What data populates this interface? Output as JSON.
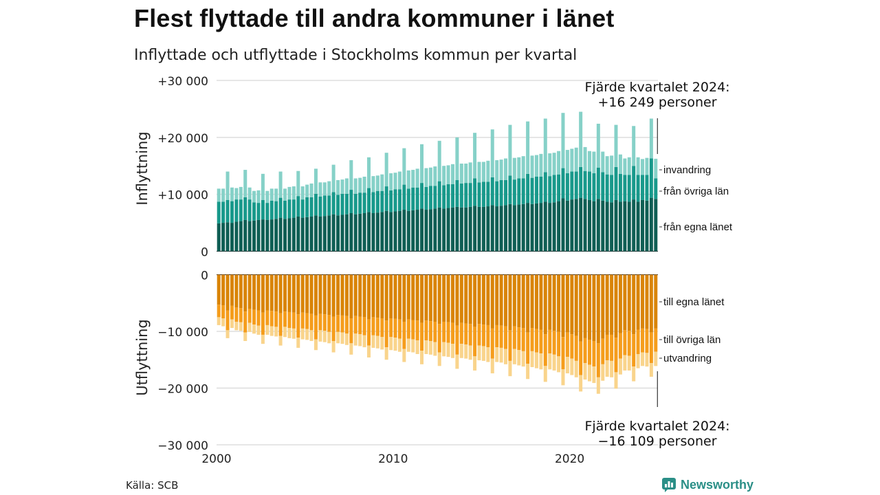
{
  "header": {
    "title": "Flest flyttade till andra kommuner i länet",
    "subtitle": "Inflyttade och utflyttade i Stockholms kommun per kvartal"
  },
  "footer": {
    "source": "Källa: SCB",
    "brand": "Newsworthy"
  },
  "colors": {
    "in_egna": "#0f5e54",
    "in_ovriga": "#18998b",
    "in_invandring": "#86d1c8",
    "out_egna": "#d98407",
    "out_ovriga": "#f59d1c",
    "out_utvandring": "#f9d48c",
    "brand": "#2b8f87"
  },
  "chart_data": {
    "type": "bar",
    "stacked": true,
    "panels": [
      {
        "name": "inflyttning",
        "axis_title": "Inflyttning",
        "ylim": [
          0,
          30000
        ],
        "ticks": [
          0,
          10000,
          20000,
          30000
        ],
        "tick_labels": [
          "0",
          "+10 000",
          "+20 000",
          "+30 000"
        ],
        "series_labels": [
          "från egna länet",
          "från övriga län",
          "invandring"
        ],
        "annotation": [
          "Fjärde kvartalet 2024:",
          "+16 249 personer"
        ]
      },
      {
        "name": "utflyttning",
        "axis_title": "Utflyttning",
        "ylim": [
          -30000,
          0
        ],
        "ticks": [
          0,
          -10000,
          -20000,
          -30000
        ],
        "tick_labels": [
          "0",
          "−10 000",
          "−20 000",
          "−30 000"
        ],
        "series_labels": [
          "till egna länet",
          "till övriga län",
          "utvandring"
        ],
        "annotation": [
          "Fjärde kvartalet 2024:",
          "−16 109 personer"
        ]
      }
    ],
    "x_ticks": [
      2000,
      2010,
      2020
    ],
    "quarters_start": "2000 Q1",
    "quarters_end": "2024 Q4",
    "inflyttning": {
      "fran_egna_lanet": [
        4900,
        5000,
        5100,
        5000,
        5200,
        5300,
        5500,
        5300,
        5400,
        5500,
        5600,
        5500,
        5600,
        5700,
        5900,
        5700,
        5800,
        5900,
        6100,
        5900,
        6000,
        6100,
        6300,
        6100,
        6200,
        6300,
        6500,
        6300,
        6400,
        6500,
        6700,
        6500,
        6600,
        6700,
        6900,
        6700,
        6800,
        6900,
        7100,
        6900,
        7000,
        7100,
        7300,
        7100,
        7200,
        7300,
        7500,
        7300,
        7400,
        7500,
        7700,
        7500,
        7600,
        7700,
        7800,
        7700,
        7700,
        7800,
        8000,
        7800,
        7800,
        7900,
        8100,
        7900,
        8000,
        8100,
        8300,
        8100,
        8200,
        8300,
        8500,
        8300,
        8400,
        8500,
        8700,
        8500,
        8600,
        8800,
        9300,
        8900,
        9100,
        9200,
        9400,
        9200,
        9000,
        8800,
        9200,
        8900,
        8700,
        8600,
        9000,
        8700,
        8800,
        8700,
        9100,
        8700,
        9000,
        8900,
        9400,
        9200
      ],
      "fran_ovriga_lan": [
        3800,
        3700,
        3900,
        3800,
        3900,
        3800,
        4000,
        3800,
        3200,
        3000,
        3400,
        3000,
        3300,
        3100,
        3500,
        3200,
        3300,
        3200,
        3600,
        3200,
        3500,
        3400,
        3800,
        3500,
        3600,
        3500,
        3900,
        3600,
        3700,
        3600,
        4100,
        3600,
        3700,
        3600,
        4200,
        3700,
        3800,
        3700,
        4300,
        3800,
        3900,
        3800,
        4400,
        3900,
        4000,
        3900,
        4500,
        4000,
        4100,
        4000,
        4600,
        4100,
        4200,
        4100,
        4700,
        4200,
        4300,
        4200,
        4800,
        4300,
        4400,
        4300,
        4900,
        4400,
        4500,
        4400,
        5000,
        4500,
        4600,
        4500,
        5100,
        4600,
        4700,
        4600,
        5200,
        4700,
        4800,
        4700,
        5300,
        4800,
        4900,
        4800,
        5400,
        4900,
        5000,
        4900,
        5500,
        5000,
        4800,
        4800,
        5800,
        4900,
        4600,
        4700,
        5900,
        4700,
        4400,
        4500,
        6900,
        3600
      ],
      "invandring": [
        2300,
        2300,
        5000,
        2400,
        2000,
        2200,
        4800,
        2100,
        2000,
        2200,
        4600,
        2100,
        2100,
        2200,
        4600,
        2100,
        2200,
        2300,
        4400,
        2300,
        2200,
        2400,
        4400,
        2500,
        2300,
        2500,
        4800,
        2600,
        2500,
        2700,
        5200,
        2700,
        2600,
        2800,
        5400,
        2800,
        2700,
        2900,
        5900,
        3000,
        2900,
        3100,
        6400,
        3200,
        3100,
        3300,
        6800,
        3300,
        3200,
        3400,
        7100,
        3400,
        3300,
        3500,
        7500,
        3500,
        3400,
        3600,
        8000,
        3600,
        3500,
        3700,
        8400,
        3700,
        3600,
        3800,
        8900,
        3800,
        3700,
        3900,
        9200,
        3900,
        3800,
        4000,
        9400,
        4000,
        3900,
        4100,
        9700,
        4100,
        4000,
        4200,
        9700,
        4200,
        3600,
        3800,
        7700,
        3600,
        3200,
        3400,
        7400,
        3400,
        2900,
        3100,
        7000,
        3100,
        2800,
        3000,
        7000,
        3449
      ]
    },
    "utflyttning": {
      "till_egna_lanet": [
        -5300,
        -5400,
        -6300,
        -5500,
        -5800,
        -5900,
        -6500,
        -6000,
        -6200,
        -6300,
        -6700,
        -6300,
        -6400,
        -6500,
        -6800,
        -6500,
        -6600,
        -6700,
        -7000,
        -6700,
        -6800,
        -6900,
        -7200,
        -6900,
        -7000,
        -7100,
        -7400,
        -7100,
        -7200,
        -7300,
        -7700,
        -7300,
        -7400,
        -7500,
        -7900,
        -7500,
        -7600,
        -7700,
        -8100,
        -7700,
        -7800,
        -7900,
        -8300,
        -7900,
        -8000,
        -8100,
        -8500,
        -8100,
        -8200,
        -8300,
        -8700,
        -8300,
        -8400,
        -8500,
        -9000,
        -8500,
        -8600,
        -8700,
        -9200,
        -8700,
        -8800,
        -8900,
        -9500,
        -8900,
        -9000,
        -9100,
        -9800,
        -9100,
        -9300,
        -9400,
        -10200,
        -9400,
        -9600,
        -9700,
        -10500,
        -9700,
        -9900,
        -10100,
        -11000,
        -10200,
        -10500,
        -10800,
        -11800,
        -11200,
        -11500,
        -11700,
        -12100,
        -11300,
        -10600,
        -10600,
        -11100,
        -10300,
        -9800,
        -9900,
        -10500,
        -9700,
        -9500,
        -9600,
        -10200,
        -9500
      ],
      "till_ovriga_lan": [
        -2200,
        -2300,
        -3500,
        -2400,
        -2500,
        -2500,
        -3700,
        -2500,
        -2600,
        -2700,
        -3900,
        -2600,
        -2700,
        -2700,
        -4000,
        -2700,
        -2800,
        -2800,
        -4100,
        -2800,
        -2800,
        -2900,
        -4200,
        -2900,
        -2900,
        -3000,
        -4300,
        -3000,
        -3000,
        -3100,
        -4400,
        -3100,
        -3100,
        -3200,
        -4600,
        -3200,
        -3200,
        -3300,
        -4700,
        -3300,
        -3300,
        -3400,
        -4800,
        -3400,
        -3400,
        -3500,
        -4900,
        -3500,
        -3500,
        -3600,
        -5000,
        -3600,
        -3600,
        -3700,
        -5100,
        -3700,
        -3700,
        -3800,
        -5200,
        -3800,
        -3800,
        -3900,
        -5300,
        -3900,
        -3900,
        -4000,
        -5400,
        -4000,
        -4000,
        -4100,
        -5500,
        -4100,
        -4100,
        -4200,
        -5600,
        -4200,
        -4200,
        -4300,
        -5700,
        -4300,
        -4300,
        -4400,
        -5900,
        -4400,
        -4400,
        -4500,
        -6000,
        -4500,
        -4500,
        -4600,
        -6100,
        -4500,
        -4400,
        -4400,
        -5700,
        -4300,
        -4200,
        -4200,
        -5400,
        -4100
      ],
      "utvandring": [
        -1400,
        -1400,
        -1400,
        -1500,
        -1500,
        -1500,
        -1500,
        -1600,
        -1600,
        -1600,
        -1600,
        -1700,
        -1700,
        -1700,
        -1700,
        -1800,
        -1800,
        -1800,
        -1800,
        -1900,
        -1900,
        -1900,
        -1900,
        -2000,
        -2000,
        -2000,
        -2000,
        -2000,
        -2000,
        -2000,
        -2000,
        -2100,
        -2100,
        -2100,
        -2100,
        -2200,
        -2200,
        -2200,
        -2200,
        -2300,
        -2300,
        -2300,
        -2300,
        -2300,
        -2300,
        -2400,
        -2400,
        -2400,
        -2400,
        -2400,
        -2400,
        -2500,
        -2500,
        -2500,
        -2500,
        -2500,
        -2500,
        -2500,
        -2500,
        -2600,
        -2600,
        -2600,
        -2600,
        -2600,
        -2600,
        -2700,
        -2700,
        -2700,
        -2700,
        -2700,
        -2700,
        -2800,
        -2800,
        -2800,
        -2800,
        -2800,
        -2800,
        -2800,
        -2800,
        -2900,
        -2900,
        -2900,
        -2900,
        -2900,
        -2900,
        -2900,
        -2900,
        -2900,
        -2900,
        -2900,
        -2900,
        -2800,
        -2700,
        -2600,
        -2600,
        -2500,
        -2400,
        -2400,
        -2400,
        -2509
      ]
    }
  }
}
